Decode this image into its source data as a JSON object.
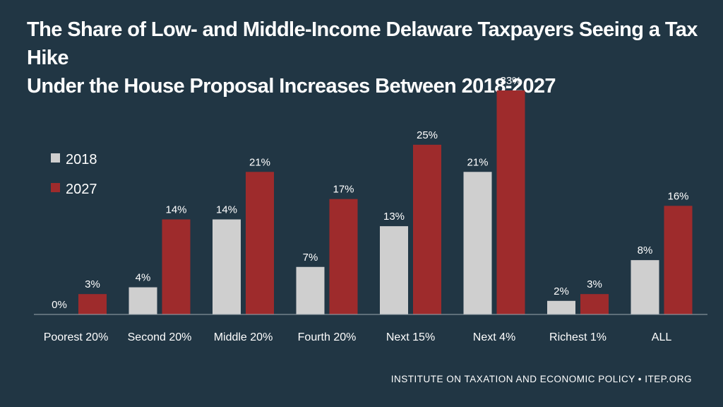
{
  "title": {
    "line1": "The Share of Low- and Middle-Income Delaware Taxpayers Seeing a Tax Hike",
    "line2": "Under the House Proposal Increases Between 2018-2027"
  },
  "footer": "INSTITUTE ON TAXATION AND ECONOMIC POLICY • ITEP.ORG",
  "colors": {
    "background": "#213644",
    "series_2018": "#cfcfcf",
    "series_2027": "#9e2b2c",
    "text": "#ffffff"
  },
  "chart_data": {
    "type": "bar",
    "title": "The Share of Low- and Middle-Income Delaware Taxpayers Seeing a Tax Hike Under the House Proposal Increases Between 2018-2027",
    "categories": [
      "Poorest 20%",
      "Second 20%",
      "Middle 20%",
      "Fourth 20%",
      "Next 15%",
      "Next 4%",
      "Richest 1%",
      "ALL"
    ],
    "series": [
      {
        "name": "2018",
        "values": [
          0,
          4,
          14,
          7,
          13,
          21,
          2,
          8
        ],
        "labels": [
          "0%",
          "4%",
          "14%",
          "7%",
          "13%",
          "21%",
          "2%",
          "8%"
        ]
      },
      {
        "name": "2027",
        "values": [
          3,
          14,
          21,
          17,
          25,
          33,
          3,
          16
        ],
        "labels": [
          "3%",
          "14%",
          "21%",
          "17%",
          "25%",
          "33%",
          "3%",
          "16%"
        ]
      }
    ],
    "xlabel": "",
    "ylabel": "",
    "ylim": [
      0,
      33
    ],
    "grid": false,
    "legend": "left"
  }
}
